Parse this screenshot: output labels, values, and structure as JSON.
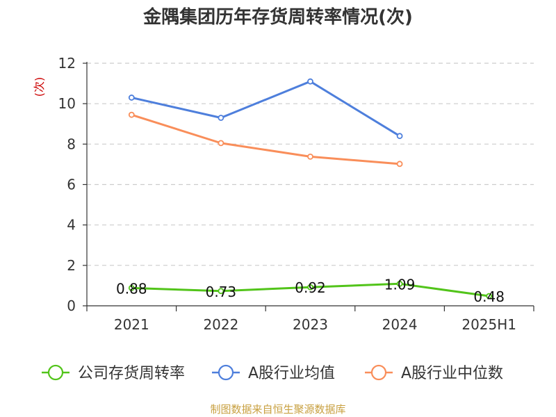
{
  "chart_data": {
    "type": "line",
    "title": "金隅集团历年存货周转率情况(次)",
    "ylabel": "(次)",
    "categories": [
      "2021",
      "2022",
      "2023",
      "2024",
      "2025H1"
    ],
    "ylim": [
      0,
      12
    ],
    "yticks": [
      0,
      2,
      4,
      6,
      8,
      10,
      12
    ],
    "grid": true,
    "legend_position": "bottom",
    "series": [
      {
        "name": "公司存货周转率",
        "color": "#52c41a",
        "values": [
          0.88,
          0.73,
          0.92,
          1.09,
          0.48
        ],
        "data_labels": [
          "0.88",
          "0.73",
          "0.92",
          "1.09",
          "0.48"
        ]
      },
      {
        "name": "A股行业均值",
        "color": "#4e7fdc",
        "values": [
          10.3,
          9.3,
          11.1,
          8.4,
          null
        ]
      },
      {
        "name": "A股行业中位数",
        "color": "#f98e5a",
        "values": [
          9.45,
          8.05,
          7.38,
          7.02,
          null
        ]
      }
    ],
    "source": "制图数据来自恒生聚源数据库"
  }
}
